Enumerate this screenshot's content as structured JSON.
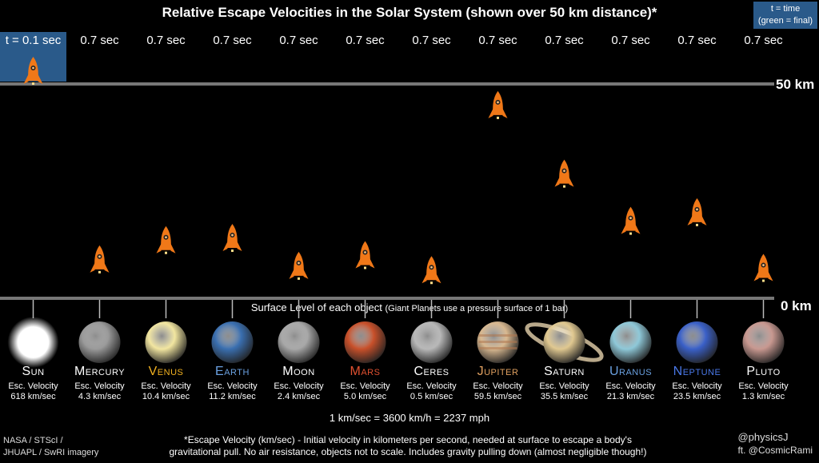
{
  "title": "Relative Escape Velocities in the Solar System (shown over 50 km distance)*",
  "legend": {
    "line1": "t = time",
    "line2": "(green = final)"
  },
  "times": [
    "t = 0.1 sec",
    "0.7 sec",
    "0.7 sec",
    "0.7 sec",
    "0.7 sec",
    "0.7 sec",
    "0.7 sec",
    "0.7 sec",
    "0.7 sec",
    "0.7 sec",
    "0.7 sec",
    "0.7 sec"
  ],
  "axis": {
    "top_label": "50 km",
    "bottom_label": "0 km"
  },
  "surface": {
    "main": "Surface Level of each object",
    "note": "(Giant Planets use a pressure surface of 1 bar)"
  },
  "conversion": "1 km/sec = 3600 km/h = 2237 mph",
  "ev_label": "Esc. Velocity",
  "credits_left": {
    "line1": "NASA / STScI /",
    "line2": "JHUAPL / SwRI imagery"
  },
  "footnote": {
    "line1": "*Escape Velocity (km/sec) - Initial velocity in kilometers per second, needed at surface to escape a body's",
    "line2": "gravitational pull. No air resistance, objects not to scale. Includes gravity pulling down (almost negligible though!)"
  },
  "credits_right": {
    "line1": "@physicsJ",
    "line2": "ft. @CosmicRami"
  },
  "colors": {
    "rocket": "#f07818",
    "active_bg": "#2a5a8a",
    "line": "#777777"
  },
  "chart_data": {
    "type": "scatter",
    "title": "Relative Escape Velocities in the Solar System (shown over 50 km distance)*",
    "ylim": [
      0,
      50
    ],
    "y_unit": "km",
    "categories": [
      "Sun",
      "Mercury",
      "Venus",
      "Earth",
      "Moon",
      "Mars",
      "Ceres",
      "Jupiter",
      "Saturn",
      "Uranus",
      "Neptune",
      "Pluto"
    ],
    "escape_velocity": [
      "618 km/sec",
      "4.3 km/sec",
      "10.4 km/sec",
      "11.2 km/sec",
      "2.4 km/sec",
      "5.0 km/sec",
      "0.5 km/sec",
      "59.5 km/sec",
      "35.5 km/sec",
      "21.3 km/sec",
      "23.5 km/sec",
      "1.3 km/sec"
    ],
    "rocket_height_km": [
      50,
      6,
      10.5,
      11,
      4.5,
      7,
      3.5,
      42,
      26,
      15,
      17,
      4
    ],
    "planet_colors": [
      "#ffffff",
      "#9a9a9a",
      "#f2e6a0",
      "#3a6fb0",
      "#a8a8a8",
      "#c8502a",
      "#b8b8b8",
      "#d8b890",
      "#e0c890",
      "#8ec8d8",
      "#3a60c8",
      "#c89890"
    ],
    "name_colors": [
      "#ffffff",
      "#ffffff",
      "#f0b020",
      "#6aa0e0",
      "#ffffff",
      "#e05030",
      "#ffffff",
      "#e0a060",
      "#ffffff",
      "#6aa0e0",
      "#4a78e8",
      "#ffffff"
    ]
  }
}
